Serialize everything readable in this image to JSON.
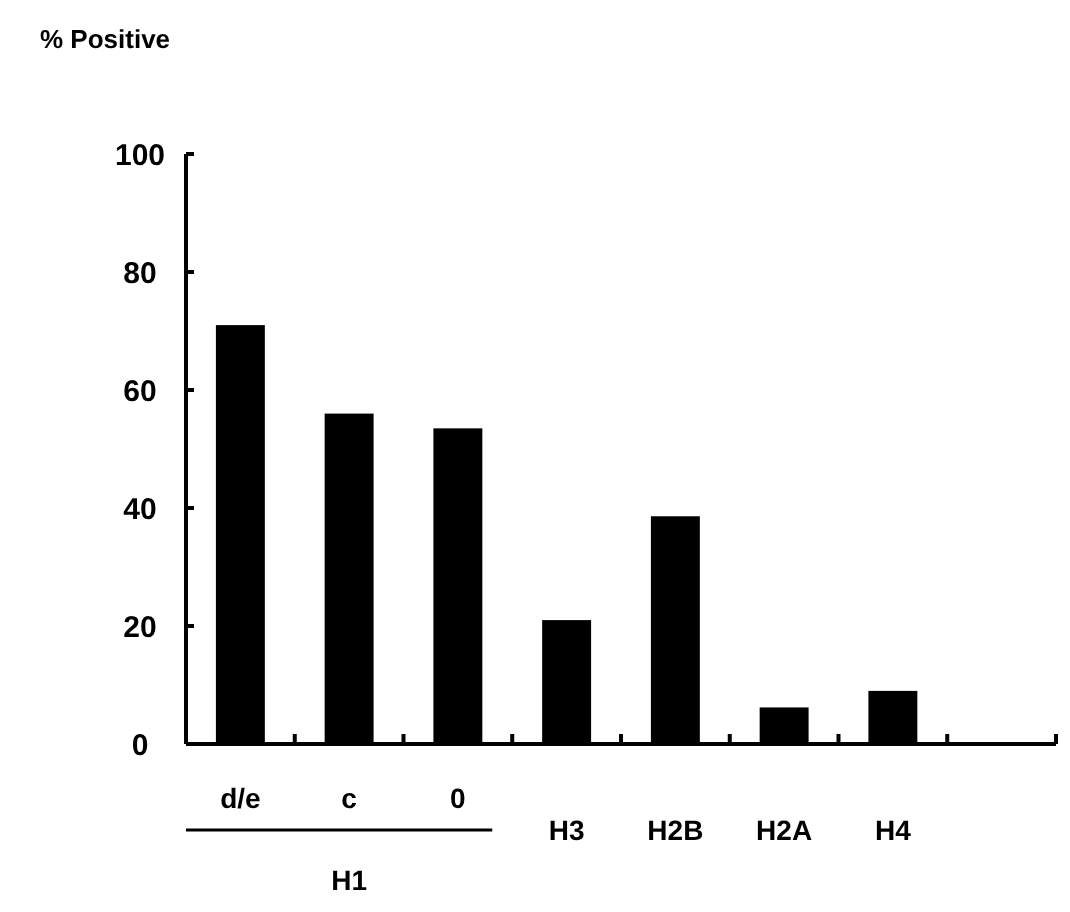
{
  "chart_data": {
    "type": "bar",
    "ylabel": "% Positive",
    "categories": [
      "d/e",
      "c",
      "0",
      "H3",
      "H2B",
      "H2A",
      "H4",
      null
    ],
    "values": [
      71,
      56,
      53.5,
      21,
      38.6,
      6.2,
      9,
      null
    ],
    "color": "#000000",
    "ylim": [
      0,
      100
    ],
    "yticks": [
      0,
      20,
      40,
      60,
      80,
      100
    ],
    "annotations": [
      "H1"
    ]
  }
}
